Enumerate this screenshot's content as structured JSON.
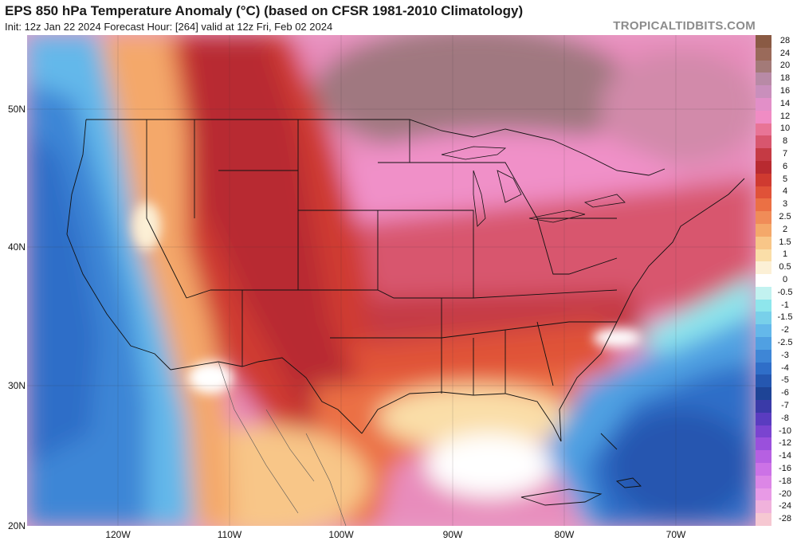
{
  "header": {
    "title": "EPS 850 hPa Temperature Anomaly (°C) (based on CFSR 1981-2010 Climatology)",
    "subtitle": "Init: 12z Jan 22 2024   Forecast Hour: [264]   valid at 12z Fri, Feb 02 2024",
    "brand": "TROPICALTIDBITS.COM"
  },
  "map": {
    "lat_labels": [
      "50N",
      "40N",
      "30N",
      "20N"
    ],
    "lon_labels": [
      "120W",
      "110W",
      "100W",
      "90W",
      "80W",
      "70W"
    ]
  },
  "colorbar": {
    "stops": [
      {
        "label": "28",
        "color": "#8a5a44"
      },
      {
        "label": "24",
        "color": "#9a6a5a"
      },
      {
        "label": "20",
        "color": "#a37a78"
      },
      {
        "label": "18",
        "color": "#b88aa6"
      },
      {
        "label": "16",
        "color": "#c98fbc"
      },
      {
        "label": "14",
        "color": "#e28fc8"
      },
      {
        "label": "12",
        "color": "#f08cc4"
      },
      {
        "label": "10",
        "color": "#e87496"
      },
      {
        "label": "8",
        "color": "#d8566e"
      },
      {
        "label": "7",
        "color": "#c53a44"
      },
      {
        "label": "6",
        "color": "#b82a30"
      },
      {
        "label": "5",
        "color": "#cf3a30"
      },
      {
        "label": "4",
        "color": "#e05238"
      },
      {
        "label": "3",
        "color": "#eb7044"
      },
      {
        "label": "2.5",
        "color": "#f08c58"
      },
      {
        "label": "2",
        "color": "#f4a86a"
      },
      {
        "label": "1.5",
        "color": "#f8c688"
      },
      {
        "label": "1",
        "color": "#fadea8"
      },
      {
        "label": "0.5",
        "color": "#fcf0d6"
      },
      {
        "label": "0",
        "color": "#ffffff"
      },
      {
        "label": "-0.5",
        "color": "#c2f2f0"
      },
      {
        "label": "-1",
        "color": "#8ee6ec"
      },
      {
        "label": "-1.5",
        "color": "#78d0ea"
      },
      {
        "label": "-2",
        "color": "#64b8ea"
      },
      {
        "label": "-2.5",
        "color": "#50a0e2"
      },
      {
        "label": "-3",
        "color": "#3e86d6"
      },
      {
        "label": "-4",
        "color": "#2f6ec8"
      },
      {
        "label": "-5",
        "color": "#2557b0"
      },
      {
        "label": "-6",
        "color": "#1e4496"
      },
      {
        "label": "-7",
        "color": "#3a3aa8"
      },
      {
        "label": "-8",
        "color": "#5a3cc0"
      },
      {
        "label": "-10",
        "color": "#7a44d0"
      },
      {
        "label": "-12",
        "color": "#9a50dc"
      },
      {
        "label": "-14",
        "color": "#b660e2"
      },
      {
        "label": "-16",
        "color": "#cc72e6"
      },
      {
        "label": "-18",
        "color": "#dc86e6"
      },
      {
        "label": "-20",
        "color": "#e89ae6"
      },
      {
        "label": "-24",
        "color": "#f0b2dc"
      },
      {
        "label": "-28",
        "color": "#f6c8d2"
      }
    ]
  }
}
